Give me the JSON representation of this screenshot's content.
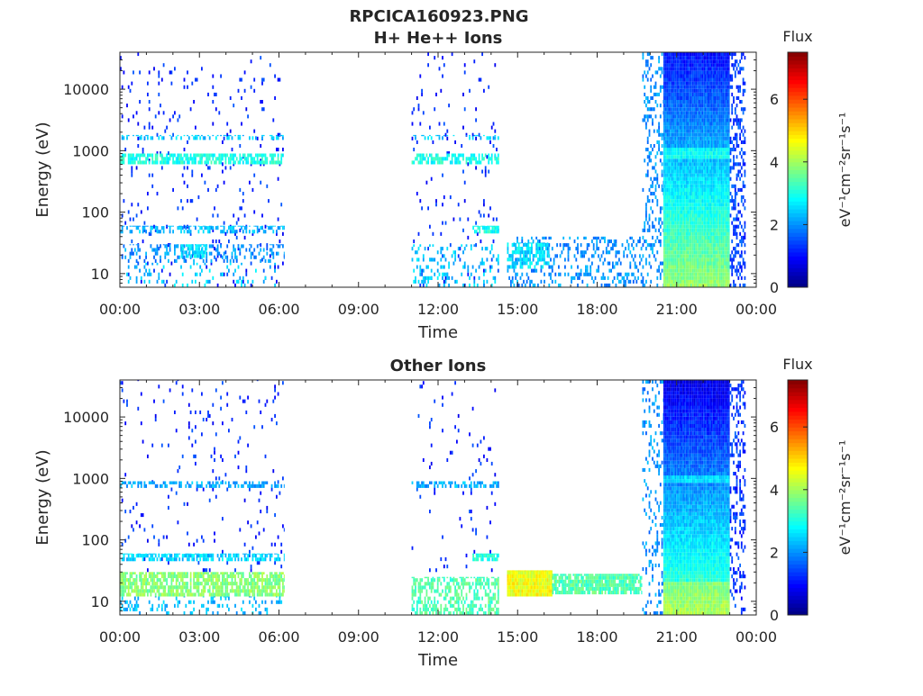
{
  "figure": {
    "title": "RPCICA160923.PNG"
  },
  "chart_data": [
    {
      "type": "heatmap",
      "title": "H+ He++ Ions",
      "xlabel": "Time",
      "ylabel": "Energy (eV)",
      "y_scale": "log",
      "ylim": [
        6,
        40000
      ],
      "xlim": [
        "00:00",
        "24:00"
      ],
      "x_ticks": [
        "00:00",
        "03:00",
        "06:00",
        "09:00",
        "12:00",
        "15:00",
        "18:00",
        "21:00",
        "00:00"
      ],
      "y_ticks": [
        "10",
        "100",
        "1000",
        "10000"
      ],
      "colorbar": {
        "label": "Flux",
        "units": "eV⁻¹cm⁻²sr⁻¹s⁻¹",
        "range": [
          0,
          7.5
        ],
        "ticks": [
          "0",
          "2",
          "4",
          "6"
        ],
        "colormap": "jet"
      },
      "regions": [
        {
          "t_start_h": 0.0,
          "t_end_h": 6.2,
          "e_min": 6,
          "e_max": 40000,
          "flux": 1.2,
          "density": 0.04
        },
        {
          "t_start_h": 0.0,
          "t_end_h": 6.2,
          "e_min": 600,
          "e_max": 900,
          "flux": 3.0,
          "density": 0.7
        },
        {
          "t_start_h": 0.0,
          "t_end_h": 6.2,
          "e_min": 1500,
          "e_max": 1800,
          "flux": 2.4,
          "density": 0.35
        },
        {
          "t_start_h": 0.0,
          "t_end_h": 6.2,
          "e_min": 45,
          "e_max": 60,
          "flux": 2.3,
          "density": 0.5
        },
        {
          "t_start_h": 0.0,
          "t_end_h": 6.2,
          "e_min": 15,
          "e_max": 30,
          "flux": 2.0,
          "density": 0.25
        },
        {
          "t_start_h": 0.0,
          "t_end_h": 6.2,
          "e_min": 6,
          "e_max": 15,
          "flux": 2.4,
          "density": 0.1
        },
        {
          "t_start_h": 2.3,
          "t_end_h": 3.3,
          "e_min": 18,
          "e_max": 30,
          "flux": 2.6,
          "density": 0.7
        },
        {
          "t_start_h": 11.0,
          "t_end_h": 14.3,
          "e_min": 6,
          "e_max": 40000,
          "flux": 1.2,
          "density": 0.03
        },
        {
          "t_start_h": 11.0,
          "t_end_h": 14.3,
          "e_min": 600,
          "e_max": 900,
          "flux": 3.0,
          "density": 0.6
        },
        {
          "t_start_h": 11.0,
          "t_end_h": 14.3,
          "e_min": 1500,
          "e_max": 1800,
          "flux": 2.4,
          "density": 0.3
        },
        {
          "t_start_h": 11.0,
          "t_end_h": 14.3,
          "e_min": 6,
          "e_max": 30,
          "flux": 2.4,
          "density": 0.2
        },
        {
          "t_start_h": 13.3,
          "t_end_h": 14.3,
          "e_min": 45,
          "e_max": 60,
          "flux": 3.0,
          "density": 0.8
        },
        {
          "t_start_h": 14.6,
          "t_end_h": 19.7,
          "e_min": 6,
          "e_max": 40,
          "flux": 2.0,
          "density": 0.25
        },
        {
          "t_start_h": 14.6,
          "t_end_h": 16.2,
          "e_min": 12,
          "e_max": 32,
          "flux": 2.6,
          "density": 0.6
        },
        {
          "t_start_h": 19.7,
          "t_end_h": 20.5,
          "e_min": 6,
          "e_max": 40000,
          "flux": 2.0,
          "density": 0.25
        },
        {
          "t_start_h": 20.5,
          "t_end_h": 23.0,
          "e_min": 6,
          "e_max": 40000,
          "flux": 1.3,
          "density": 1.0,
          "profile": "top-blue"
        },
        {
          "t_start_h": 23.0,
          "t_end_h": 23.6,
          "e_min": 6,
          "e_max": 40000,
          "flux": 1.4,
          "density": 0.35
        }
      ]
    },
    {
      "type": "heatmap",
      "title": "Other Ions",
      "xlabel": "Time",
      "ylabel": "Energy (eV)",
      "y_scale": "log",
      "ylim": [
        6,
        40000
      ],
      "xlim": [
        "00:00",
        "24:00"
      ],
      "x_ticks": [
        "00:00",
        "03:00",
        "06:00",
        "09:00",
        "12:00",
        "15:00",
        "18:00",
        "21:00",
        "00:00"
      ],
      "y_ticks": [
        "10",
        "100",
        "1000",
        "10000"
      ],
      "colorbar": {
        "label": "Flux",
        "units": "eV⁻¹cm⁻²sr⁻¹s⁻¹",
        "range": [
          0,
          7.5
        ],
        "ticks": [
          "0",
          "2",
          "4",
          "6"
        ],
        "colormap": "jet"
      },
      "regions": [
        {
          "t_start_h": 0.0,
          "t_end_h": 6.2,
          "e_min": 30,
          "e_max": 40000,
          "flux": 1.2,
          "density": 0.03
        },
        {
          "t_start_h": 0.0,
          "t_end_h": 6.2,
          "e_min": 700,
          "e_max": 900,
          "flux": 2.2,
          "density": 0.5
        },
        {
          "t_start_h": 0.0,
          "t_end_h": 6.2,
          "e_min": 45,
          "e_max": 60,
          "flux": 2.5,
          "density": 0.6
        },
        {
          "t_start_h": 0.0,
          "t_end_h": 6.2,
          "e_min": 12,
          "e_max": 30,
          "flux": 3.8,
          "density": 0.75
        },
        {
          "t_start_h": 0.0,
          "t_end_h": 6.2,
          "e_min": 6,
          "e_max": 12,
          "flux": 2.3,
          "density": 0.15
        },
        {
          "t_start_h": 11.0,
          "t_end_h": 14.3,
          "e_min": 30,
          "e_max": 40000,
          "flux": 1.2,
          "density": 0.03
        },
        {
          "t_start_h": 11.0,
          "t_end_h": 14.3,
          "e_min": 700,
          "e_max": 900,
          "flux": 2.2,
          "density": 0.5
        },
        {
          "t_start_h": 11.0,
          "t_end_h": 14.3,
          "e_min": 6,
          "e_max": 25,
          "flux": 3.4,
          "density": 0.55
        },
        {
          "t_start_h": 13.3,
          "t_end_h": 14.3,
          "e_min": 45,
          "e_max": 60,
          "flux": 3.0,
          "density": 0.8
        },
        {
          "t_start_h": 14.6,
          "t_end_h": 16.3,
          "e_min": 12,
          "e_max": 32,
          "flux": 4.6,
          "density": 1.0
        },
        {
          "t_start_h": 16.3,
          "t_end_h": 19.7,
          "e_min": 13,
          "e_max": 28,
          "flux": 3.4,
          "density": 0.85
        },
        {
          "t_start_h": 19.7,
          "t_end_h": 20.5,
          "e_min": 6,
          "e_max": 40000,
          "flux": 2.0,
          "density": 0.2
        },
        {
          "t_start_h": 20.5,
          "t_end_h": 23.0,
          "e_min": 6,
          "e_max": 40000,
          "flux": 1.2,
          "density": 1.0,
          "profile": "top-blue-other"
        },
        {
          "t_start_h": 23.0,
          "t_end_h": 23.6,
          "e_min": 6,
          "e_max": 40000,
          "flux": 1.3,
          "density": 0.3
        }
      ]
    }
  ]
}
